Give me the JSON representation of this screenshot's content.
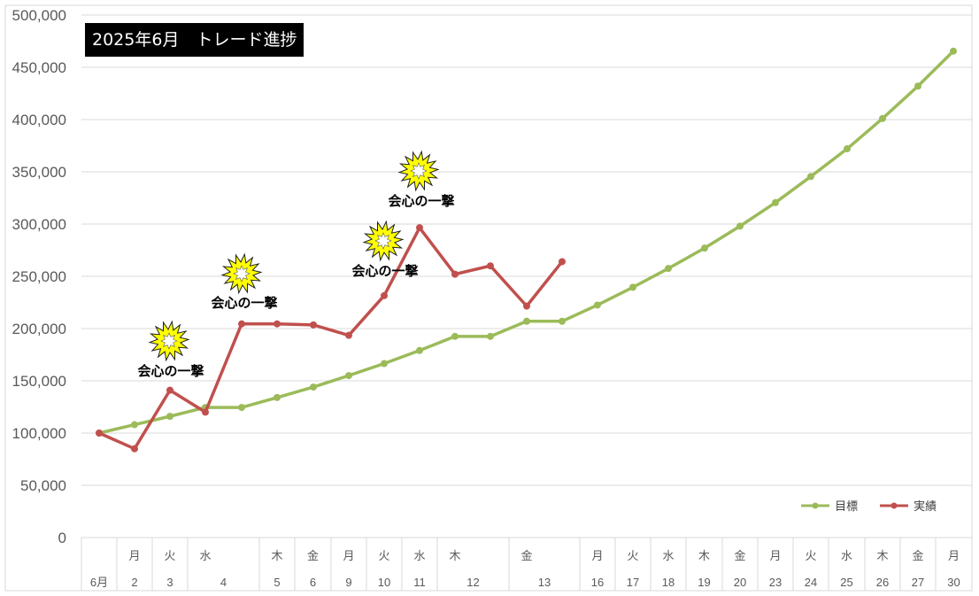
{
  "chart_data": {
    "type": "line",
    "title": "2025年6月　トレード進捗",
    "ylim": [
      0,
      500000
    ],
    "y_ticks": [
      "0",
      "50,000",
      "100,000",
      "150,000",
      "200,000",
      "250,000",
      "300,000",
      "350,000",
      "400,000",
      "450,000",
      "500,000"
    ],
    "categories": [
      {
        "weekday": "",
        "day": "6月"
      },
      {
        "weekday": "月",
        "day": "2"
      },
      {
        "weekday": "火",
        "day": "3"
      },
      {
        "weekday": "水",
        "day": "4"
      },
      {
        "weekday": "木",
        "day": "5"
      },
      {
        "weekday": "金",
        "day": "6"
      },
      {
        "weekday": "月",
        "day": "9"
      },
      {
        "weekday": "火",
        "day": "10"
      },
      {
        "weekday": "水",
        "day": "11"
      },
      {
        "weekday": "木",
        "day": "12"
      },
      {
        "weekday": "金",
        "day": "13"
      },
      {
        "weekday": "月",
        "day": "16"
      },
      {
        "weekday": "火",
        "day": "17"
      },
      {
        "weekday": "水",
        "day": "18"
      },
      {
        "weekday": "木",
        "day": "19"
      },
      {
        "weekday": "金",
        "day": "20"
      },
      {
        "weekday": "月",
        "day": "23"
      },
      {
        "weekday": "火",
        "day": "24"
      },
      {
        "weekday": "水",
        "day": "25"
      },
      {
        "weekday": "木",
        "day": "26"
      },
      {
        "weekday": "金",
        "day": "27"
      },
      {
        "weekday": "月",
        "day": "30"
      }
    ],
    "series": [
      {
        "name": "目標",
        "color": "#9bbb59",
        "points": [
          {
            "d": "6月",
            "v": 100000
          },
          {
            "d": "2",
            "v": 108000
          },
          {
            "d": "3",
            "v": 116000
          },
          {
            "d": "4a",
            "v": 124500
          },
          {
            "d": "4b",
            "v": 124500
          },
          {
            "d": "5",
            "v": 134000
          },
          {
            "d": "6",
            "v": 144000
          },
          {
            "d": "9",
            "v": 155000
          },
          {
            "d": "10",
            "v": 166500
          },
          {
            "d": "11",
            "v": 179000
          },
          {
            "d": "12a",
            "v": 192500
          },
          {
            "d": "12b",
            "v": 192500
          },
          {
            "d": "13a",
            "v": 207000
          },
          {
            "d": "13b",
            "v": 207000
          },
          {
            "d": "16",
            "v": 222500
          },
          {
            "d": "17",
            "v": 239500
          },
          {
            "d": "18",
            "v": 257500
          },
          {
            "d": "19",
            "v": 277000
          },
          {
            "d": "20",
            "v": 298000
          },
          {
            "d": "23",
            "v": 320500
          },
          {
            "d": "24",
            "v": 345500
          },
          {
            "d": "25",
            "v": 372000
          },
          {
            "d": "26",
            "v": 401000
          },
          {
            "d": "27",
            "v": 432000
          },
          {
            "d": "30",
            "v": 465500
          }
        ]
      },
      {
        "name": "実績",
        "color": "#c0504d",
        "points": [
          {
            "d": "6月",
            "v": 100000
          },
          {
            "d": "2",
            "v": 85000
          },
          {
            "d": "3",
            "v": 141000
          },
          {
            "d": "4a",
            "v": 120000
          },
          {
            "d": "4b",
            "v": 204500
          },
          {
            "d": "5",
            "v": 204500
          },
          {
            "d": "6",
            "v": 203500
          },
          {
            "d": "9",
            "v": 193500
          },
          {
            "d": "10",
            "v": 231500
          },
          {
            "d": "11",
            "v": 296500
          },
          {
            "d": "12a",
            "v": 252000
          },
          {
            "d": "12b",
            "v": 260000
          },
          {
            "d": "13a",
            "v": 221500
          },
          {
            "d": "13b",
            "v": 264000
          }
        ]
      }
    ],
    "annotations": [
      {
        "text": "会心の一撃",
        "near": "3"
      },
      {
        "text": "会心の一撃",
        "near": "4b"
      },
      {
        "text": "会心の一撃",
        "near": "10"
      },
      {
        "text": "会心の一撃",
        "near": "11"
      }
    ],
    "legend_position": "bottom-right",
    "grid": true
  }
}
